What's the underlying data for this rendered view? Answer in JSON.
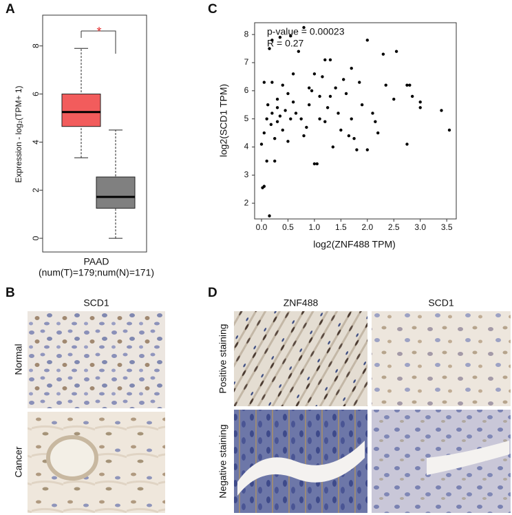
{
  "panels": {
    "a": "A",
    "b": "B",
    "c": "C",
    "d": "D"
  },
  "chart_data": [
    {
      "type": "box",
      "ylabel": "Expression - log₂(TPM+ 1)",
      "categories": [
        "PAAD"
      ],
      "sublabel": "(num(T)=179;num(N)=171)",
      "boxes": [
        {
          "whislo": 3.35,
          "q1": 4.65,
          "med": 5.25,
          "q3": 6.0,
          "whishi": 7.9,
          "color": "#f25c5c"
        },
        {
          "whislo": 0,
          "q1": 1.25,
          "med": 1.72,
          "q3": 2.55,
          "whishi": 4.5,
          "color": "#808080"
        }
      ],
      "annotation": "*",
      "ylim": [
        -0.57,
        9.28
      ],
      "yticks": [
        0,
        2,
        4,
        6,
        8
      ]
    },
    {
      "type": "scatter",
      "xlabel": "log2(ZNF488 TPM)",
      "ylabel": "log2(SCD1 TPM)",
      "annotations": [
        "p-value = 0.00023",
        "R = 0.27"
      ],
      "color": "#000000",
      "x": [
        0.02,
        0.05,
        0.15,
        0.1,
        0.25,
        0.15,
        0.2,
        0.35,
        0.55,
        0.8,
        0.4,
        0.05,
        0.3,
        0.0,
        0.05,
        0.1,
        0.12,
        0.18,
        0.2,
        0.25,
        0.3,
        0.35,
        0.4,
        0.45,
        0.5,
        0.55,
        0.6,
        0.65,
        0.7,
        0.75,
        0.8,
        0.85,
        0.9,
        0.95,
        1.0,
        1.0,
        1.05,
        1.1,
        1.15,
        1.2,
        1.25,
        1.3,
        1.35,
        1.4,
        1.45,
        1.5,
        1.55,
        1.6,
        1.65,
        1.7,
        1.75,
        1.8,
        1.85,
        1.9,
        2.0,
        2.0,
        2.1,
        2.15,
        2.2,
        2.3,
        2.35,
        2.5,
        2.55,
        2.75,
        2.75,
        2.8,
        2.85,
        3.0,
        3.0,
        3.4,
        3.55,
        1.2,
        0.9,
        0.3,
        0.6,
        1.1,
        0.5,
        1.3,
        1.7,
        0.2
      ],
      "y": [
        2.55,
        2.6,
        1.55,
        3.5,
        3.5,
        7.5,
        7.8,
        7.9,
        7.95,
        8.25,
        6.2,
        6.3,
        5.7,
        4.1,
        4.5,
        5.0,
        5.5,
        4.8,
        5.2,
        4.3,
        4.9,
        5.1,
        4.6,
        5.3,
        5.9,
        5.0,
        6.6,
        5.2,
        7.4,
        5.0,
        4.4,
        4.7,
        5.5,
        6.0,
        6.6,
        3.4,
        3.4,
        5.8,
        6.5,
        4.9,
        5.4,
        7.1,
        4.0,
        6.1,
        5.2,
        4.6,
        6.4,
        5.9,
        4.4,
        5.0,
        4.3,
        3.9,
        6.3,
        5.5,
        7.8,
        3.9,
        5.2,
        4.9,
        4.5,
        7.3,
        6.2,
        5.7,
        7.4,
        6.2,
        4.1,
        6.2,
        5.8,
        5.6,
        5.4,
        5.3,
        4.6,
        7.1,
        6.1,
        5.4,
        5.6,
        5.0,
        4.2,
        5.8,
        6.8,
        6.3
      ],
      "xlim": [
        -0.13,
        3.68
      ],
      "xticks": [
        {
          "value": 0,
          "label": "0.0"
        },
        0.5,
        {
          "value": 1,
          "label": "1.0"
        },
        1.5,
        {
          "value": 2,
          "label": "2.0"
        },
        2.5,
        {
          "value": 3,
          "label": "3.0"
        },
        3.5
      ],
      "ylim": [
        1.44,
        8.42
      ],
      "yticks": [
        2,
        3,
        4,
        5,
        6,
        7,
        8
      ]
    }
  ],
  "panel_b": {
    "title": "SCD1",
    "rows": [
      "Normal",
      "Cancer"
    ]
  },
  "panel_d": {
    "columns": [
      "ZNF488",
      "SCD1"
    ],
    "rows": [
      "Positive staining",
      "Negative staining"
    ]
  }
}
